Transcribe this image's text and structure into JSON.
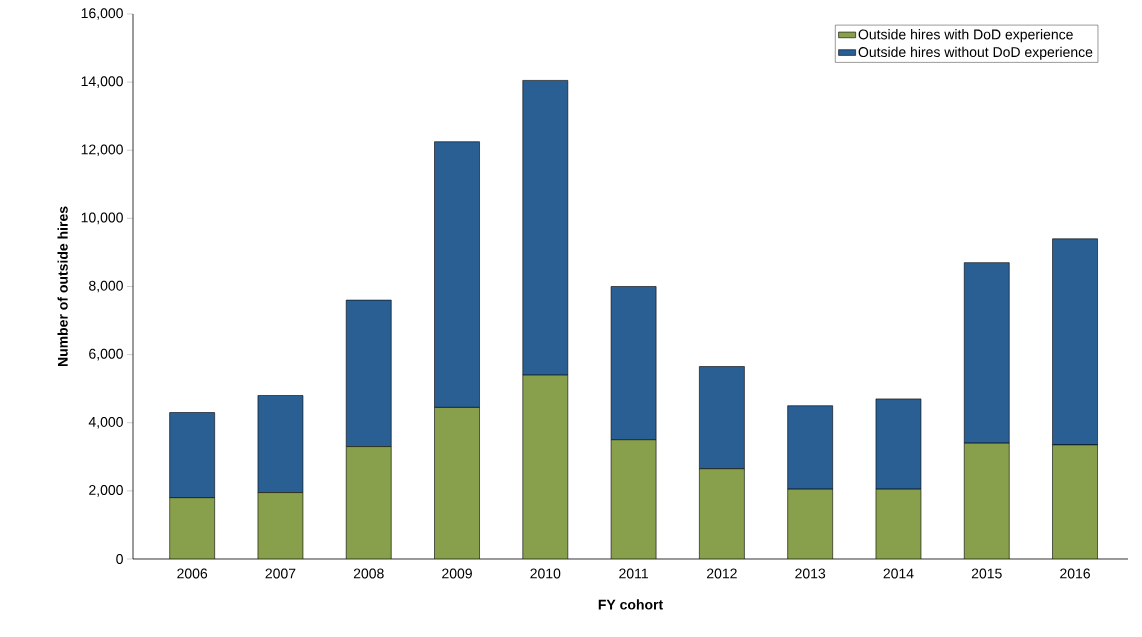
{
  "chart_data": {
    "type": "bar",
    "stacked": true,
    "xlabel": "FY cohort",
    "ylabel": "Number of outside hires",
    "categories": [
      "2006",
      "2007",
      "2008",
      "2009",
      "2010",
      "2011",
      "2012",
      "2013",
      "2014",
      "2015",
      "2016"
    ],
    "series": [
      {
        "name": "Outside hires with DoD experience",
        "color": "#88a04c",
        "values": [
          1800,
          1950,
          3300,
          4450,
          5400,
          3500,
          2650,
          2050,
          2050,
          3400,
          3350
        ]
      },
      {
        "name": "Outside hires without DoD experience",
        "color": "#2a5f93",
        "values": [
          2500,
          2850,
          4300,
          7800,
          8650,
          4500,
          3000,
          2450,
          2650,
          5300,
          6050
        ]
      }
    ],
    "ylim": [
      0,
      16000
    ],
    "yticks": [
      0,
      {
        "value": 2000,
        "label": "2,000"
      },
      {
        "value": 4000,
        "label": "4,000"
      },
      {
        "value": 6000,
        "label": "6,000"
      },
      {
        "value": 8000,
        "label": "8,000"
      },
      {
        "value": 10000,
        "label": "10,000"
      },
      {
        "value": 12000,
        "label": "12,000"
      },
      {
        "value": 14000,
        "label": "14,000"
      },
      {
        "value": 16000,
        "label": "16,000"
      }
    ],
    "legend": "top right",
    "grid": false
  }
}
